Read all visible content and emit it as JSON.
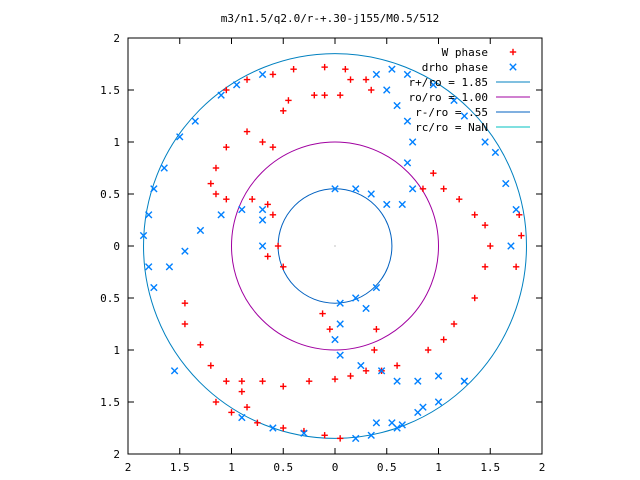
{
  "chart_data": {
    "type": "scatter",
    "title": "m3/n1.5/q2.0/r-+.30-j155/M0.5/512",
    "xlim": [
      -2,
      2
    ],
    "ylim": [
      -2,
      2
    ],
    "x_ticks": [
      {
        "value": -2,
        "label": "2"
      },
      {
        "value": -1.5,
        "label": "1.5"
      },
      {
        "value": -1,
        "label": "1"
      },
      {
        "value": -0.5,
        "label": "0.5"
      },
      {
        "value": 0,
        "label": "0"
      },
      {
        "value": 0.5,
        "label": "0.5"
      },
      {
        "value": 1,
        "label": "1"
      },
      {
        "value": 1.5,
        "label": "1.5"
      },
      {
        "value": 2,
        "label": "2"
      }
    ],
    "y_ticks": [
      {
        "value": 2,
        "label": "2"
      },
      {
        "value": 1.5,
        "label": "1.5"
      },
      {
        "value": 1,
        "label": "1"
      },
      {
        "value": 0.5,
        "label": "0.5"
      },
      {
        "value": 0,
        "label": "0"
      },
      {
        "value": -0.5,
        "label": "0.5"
      },
      {
        "value": -1,
        "label": "1"
      },
      {
        "value": -1.5,
        "label": "1.5"
      },
      {
        "value": -2,
        "label": "2"
      }
    ],
    "grid": false,
    "legend_position": "top-right",
    "series": [
      {
        "name": "W phase",
        "color": "#ff0000",
        "marker": "plus",
        "points": [
          [
            0.05,
            -1.85
          ],
          [
            -0.1,
            -1.82
          ],
          [
            -0.3,
            -1.78
          ],
          [
            -0.5,
            -1.75
          ],
          [
            -0.75,
            -1.7
          ],
          [
            -1.0,
            -1.6
          ],
          [
            -1.15,
            -1.5
          ],
          [
            -0.9,
            -1.4
          ],
          [
            -0.9,
            -1.3
          ],
          [
            -0.7,
            -1.3
          ],
          [
            -0.5,
            -1.35
          ],
          [
            -0.25,
            -1.3
          ],
          [
            0.0,
            -1.28
          ],
          [
            0.15,
            -1.25
          ],
          [
            0.3,
            -1.2
          ],
          [
            0.38,
            -1.0
          ],
          [
            0.4,
            -0.8
          ],
          [
            -0.05,
            -0.8
          ],
          [
            -0.12,
            -0.65
          ],
          [
            -0.5,
            -0.2
          ],
          [
            -0.65,
            -0.1
          ],
          [
            -0.55,
            0.0
          ],
          [
            -0.6,
            0.3
          ],
          [
            -0.65,
            0.4
          ],
          [
            -0.8,
            0.45
          ],
          [
            -1.05,
            0.45
          ],
          [
            -1.15,
            0.5
          ],
          [
            -1.2,
            0.6
          ],
          [
            -1.15,
            0.75
          ],
          [
            -1.05,
            0.95
          ],
          [
            -0.85,
            1.1
          ],
          [
            -0.7,
            1.0
          ],
          [
            -0.6,
            0.95
          ],
          [
            -0.5,
            1.3
          ],
          [
            -0.45,
            1.4
          ],
          [
            -0.2,
            1.45
          ],
          [
            -0.1,
            1.45
          ],
          [
            0.05,
            1.45
          ],
          [
            0.15,
            1.6
          ],
          [
            0.35,
            1.5
          ],
          [
            0.3,
            1.6
          ],
          [
            0.1,
            1.7
          ],
          [
            -0.1,
            1.72
          ],
          [
            -0.4,
            1.7
          ],
          [
            -0.6,
            1.65
          ],
          [
            -0.85,
            1.6
          ],
          [
            -1.05,
            1.5
          ],
          [
            0.85,
            0.55
          ],
          [
            0.95,
            0.7
          ],
          [
            1.05,
            0.55
          ],
          [
            1.2,
            0.45
          ],
          [
            1.35,
            0.3
          ],
          [
            1.45,
            0.2
          ],
          [
            1.5,
            0.0
          ],
          [
            1.45,
            -0.2
          ],
          [
            1.35,
            -0.5
          ],
          [
            1.15,
            -0.75
          ],
          [
            1.05,
            -0.9
          ],
          [
            0.9,
            -1.0
          ],
          [
            0.6,
            -1.15
          ],
          [
            0.45,
            -1.2
          ],
          [
            1.75,
            -0.2
          ],
          [
            1.8,
            0.1
          ],
          [
            1.78,
            0.3
          ],
          [
            -1.45,
            -0.55
          ],
          [
            -1.45,
            -0.75
          ],
          [
            -1.3,
            -0.95
          ],
          [
            -1.2,
            -1.15
          ],
          [
            -1.05,
            -1.3
          ],
          [
            -0.85,
            -1.55
          ]
        ]
      },
      {
        "name": "drho phase",
        "color": "#0080ff",
        "marker": "x",
        "points": [
          [
            0.35,
            -1.82
          ],
          [
            0.2,
            -1.85
          ],
          [
            0.55,
            -1.7
          ],
          [
            0.65,
            -1.72
          ],
          [
            0.8,
            -1.6
          ],
          [
            1.0,
            -1.5
          ],
          [
            1.25,
            -1.3
          ],
          [
            1.0,
            -1.25
          ],
          [
            0.8,
            -1.3
          ],
          [
            0.6,
            -1.3
          ],
          [
            0.45,
            -1.2
          ],
          [
            0.25,
            -1.15
          ],
          [
            0.05,
            -1.05
          ],
          [
            0.0,
            -0.9
          ],
          [
            0.05,
            -0.75
          ],
          [
            0.3,
            -0.6
          ],
          [
            0.4,
            -0.4
          ],
          [
            0.2,
            -0.5
          ],
          [
            0.05,
            -0.55
          ],
          [
            -0.7,
            0.0
          ],
          [
            -0.7,
            0.25
          ],
          [
            -0.7,
            0.35
          ],
          [
            -0.9,
            0.35
          ],
          [
            -1.1,
            0.3
          ],
          [
            -1.3,
            0.15
          ],
          [
            -1.45,
            -0.05
          ],
          [
            -1.6,
            -0.2
          ],
          [
            -1.75,
            -0.4
          ],
          [
            -1.8,
            -0.2
          ],
          [
            -1.85,
            0.1
          ],
          [
            -1.8,
            0.3
          ],
          [
            -1.75,
            0.55
          ],
          [
            -1.65,
            0.75
          ],
          [
            -1.5,
            1.05
          ],
          [
            -1.35,
            1.2
          ],
          [
            -1.1,
            1.45
          ],
          [
            -0.95,
            1.55
          ],
          [
            -0.7,
            1.65
          ],
          [
            0.0,
            0.55
          ],
          [
            0.2,
            0.55
          ],
          [
            0.35,
            0.5
          ],
          [
            0.5,
            0.4
          ],
          [
            0.65,
            0.4
          ],
          [
            0.75,
            0.55
          ],
          [
            0.7,
            0.8
          ],
          [
            0.75,
            1.0
          ],
          [
            0.7,
            1.2
          ],
          [
            0.6,
            1.35
          ],
          [
            0.5,
            1.5
          ],
          [
            0.4,
            1.65
          ],
          [
            0.55,
            1.7
          ],
          [
            0.7,
            1.65
          ],
          [
            0.95,
            1.55
          ],
          [
            1.15,
            1.4
          ],
          [
            1.25,
            1.25
          ],
          [
            1.45,
            1.0
          ],
          [
            1.55,
            0.9
          ],
          [
            1.65,
            0.6
          ],
          [
            1.75,
            0.35
          ],
          [
            1.7,
            0.0
          ],
          [
            -1.55,
            -1.2
          ],
          [
            -0.9,
            -1.65
          ],
          [
            -0.6,
            -1.75
          ],
          [
            -0.3,
            -1.8
          ],
          [
            0.4,
            -1.7
          ],
          [
            0.6,
            -1.75
          ],
          [
            0.85,
            -1.55
          ],
          [
            1.25,
            -1.3
          ]
        ]
      }
    ],
    "circles": [
      {
        "name": "r+/ro = 1.85",
        "radius": 1.85,
        "color": "#0080c0"
      },
      {
        "name": "ro/ro = 1.00",
        "radius": 1.0,
        "color": "#a000a0"
      },
      {
        "name": "r-/ro = .55",
        "radius": 0.55,
        "color": "#0060c0"
      },
      {
        "name": "rc/ro = NaN",
        "radius": null,
        "color": "#00c0c0"
      }
    ]
  }
}
